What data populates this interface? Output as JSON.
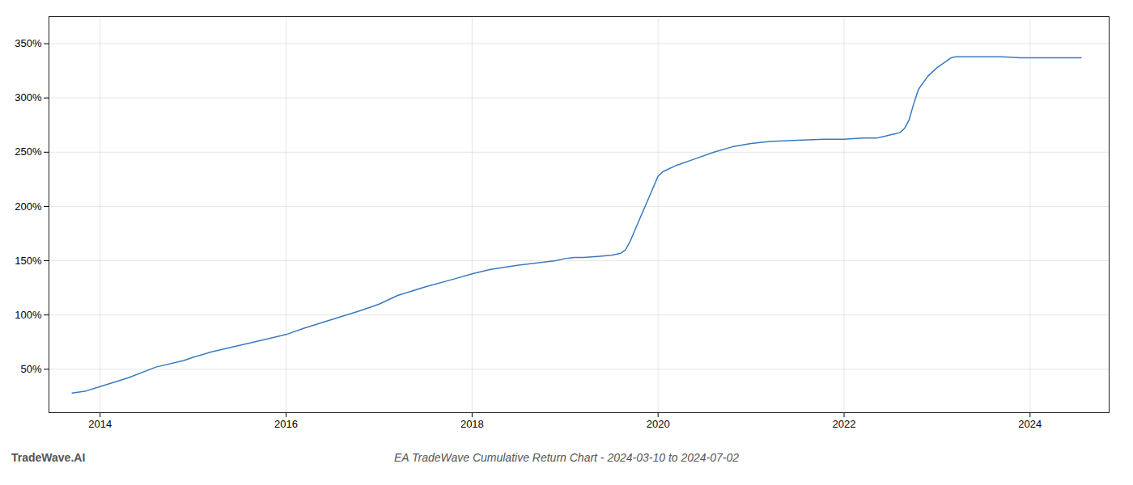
{
  "chart_data": {
    "type": "line",
    "title": "EA TradeWave Cumulative Return Chart - 2024-03-10 to 2024-07-02",
    "annotations": [
      "TradeWave.AI"
    ],
    "color": "#3a7abf",
    "grid": true,
    "xlim": [
      2013.45,
      2024.85
    ],
    "xticks": [
      2014,
      2016,
      2018,
      2020,
      2022,
      2024
    ],
    "ylim": [
      10,
      375
    ],
    "yticks": [
      {
        "value": 50,
        "label": "50%"
      },
      {
        "value": 100,
        "label": "100%"
      },
      {
        "value": 150,
        "label": "150%"
      },
      {
        "value": 200,
        "label": "200%"
      },
      {
        "value": 250,
        "label": "250%"
      },
      {
        "value": 300,
        "label": "300%"
      },
      {
        "value": 350,
        "label": "350%"
      }
    ],
    "x": [
      2013.7,
      2013.85,
      2014.0,
      2014.3,
      2014.6,
      2014.9,
      2015.0,
      2015.2,
      2015.5,
      2015.8,
      2016.0,
      2016.2,
      2016.5,
      2016.8,
      2017.0,
      2017.2,
      2017.5,
      2017.8,
      2018.0,
      2018.2,
      2018.5,
      2018.7,
      2018.9,
      2019.0,
      2019.1,
      2019.2,
      2019.35,
      2019.5,
      2019.6,
      2019.65,
      2019.7,
      2019.75,
      2019.8,
      2019.85,
      2019.9,
      2019.95,
      2020.0,
      2020.05,
      2020.1,
      2020.2,
      2020.4,
      2020.6,
      2020.8,
      2021.0,
      2021.2,
      2021.5,
      2021.8,
      2022.0,
      2022.2,
      2022.35,
      2022.4,
      2022.45,
      2022.5,
      2022.55,
      2022.6,
      2022.65,
      2022.7,
      2022.75,
      2022.8,
      2022.9,
      2023.0,
      2023.1,
      2023.15,
      2023.2,
      2023.3,
      2023.5,
      2023.7,
      2023.9,
      2024.0,
      2024.2,
      2024.4,
      2024.55
    ],
    "values": [
      28,
      30,
      34,
      42,
      52,
      58,
      61,
      66,
      72,
      78,
      82,
      88,
      96,
      104,
      110,
      118,
      126,
      133,
      138,
      142,
      146,
      148,
      150,
      152,
      153,
      153,
      154,
      155,
      157,
      160,
      168,
      178,
      188,
      198,
      208,
      218,
      228,
      232,
      234,
      238,
      244,
      250,
      255,
      258,
      260,
      261,
      262,
      262,
      263,
      263,
      264,
      265,
      266,
      267,
      268,
      272,
      280,
      295,
      308,
      320,
      328,
      334,
      337,
      338,
      338,
      338,
      338,
      337,
      337,
      337,
      337,
      337
    ]
  }
}
